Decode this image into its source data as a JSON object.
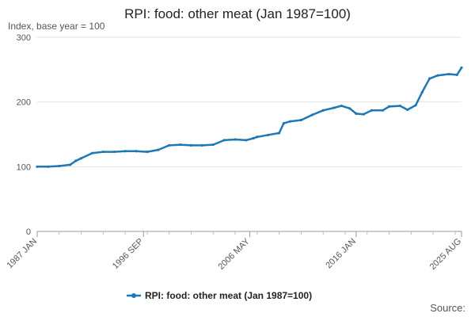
{
  "chart_data": {
    "type": "line",
    "title": "RPI: food: other meat (Jan 1987=100)",
    "subtitle": "Index, base year = 100",
    "source_label": "Source:",
    "ylim": [
      0,
      300
    ],
    "yticks": [
      0,
      100,
      200,
      300
    ],
    "xrange": [
      "1987-01",
      "2025-08"
    ],
    "xticks": [
      {
        "label": "1987 JAN",
        "date": "1987-01"
      },
      {
        "label": "1996 SEP",
        "date": "1996-09"
      },
      {
        "label": "2006 MAY",
        "date": "2006-05"
      },
      {
        "label": "2016 JAN",
        "date": "2016-01"
      },
      {
        "label": "2025 AUG",
        "date": "2025-08"
      }
    ],
    "grid": true,
    "legend_position": "bottom",
    "series": [
      {
        "name": "RPI: food: other meat (Jan 1987=100)",
        "color": "#1f77b4",
        "points": [
          [
            "1987-01",
            100
          ],
          [
            "1988-01",
            100
          ],
          [
            "1989-01",
            101
          ],
          [
            "1990-01",
            103
          ],
          [
            "1990-07",
            109
          ],
          [
            "1991-01",
            113
          ],
          [
            "1992-01",
            121
          ],
          [
            "1993-01",
            123
          ],
          [
            "1994-01",
            123
          ],
          [
            "1995-01",
            124
          ],
          [
            "1996-01",
            124
          ],
          [
            "1997-01",
            123
          ],
          [
            "1998-01",
            126
          ],
          [
            "1999-01",
            133
          ],
          [
            "2000-01",
            134
          ],
          [
            "2001-01",
            133
          ],
          [
            "2002-01",
            133
          ],
          [
            "2003-01",
            134
          ],
          [
            "2004-01",
            141
          ],
          [
            "2005-01",
            142
          ],
          [
            "2006-01",
            141
          ],
          [
            "2006-09",
            144
          ],
          [
            "2007-01",
            146
          ],
          [
            "2008-01",
            149
          ],
          [
            "2009-01",
            152
          ],
          [
            "2009-06",
            167
          ],
          [
            "2010-01",
            170
          ],
          [
            "2011-01",
            172
          ],
          [
            "2012-01",
            180
          ],
          [
            "2013-01",
            187
          ],
          [
            "2014-01",
            191
          ],
          [
            "2014-09",
            194
          ],
          [
            "2015-06",
            190
          ],
          [
            "2016-01",
            182
          ],
          [
            "2016-09",
            181
          ],
          [
            "2017-06",
            187
          ],
          [
            "2018-06",
            187
          ],
          [
            "2019-01",
            193
          ],
          [
            "2020-01",
            194
          ],
          [
            "2020-09",
            188
          ],
          [
            "2021-06",
            195
          ],
          [
            "2022-01",
            215
          ],
          [
            "2022-09",
            236
          ],
          [
            "2023-06",
            241
          ],
          [
            "2024-06",
            243
          ],
          [
            "2025-03",
            242
          ],
          [
            "2025-08",
            253
          ]
        ]
      }
    ]
  }
}
